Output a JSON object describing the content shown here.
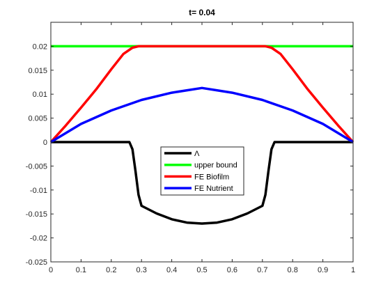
{
  "chart_data": {
    "type": "line",
    "title": "t=  0.04",
    "xlabel": "",
    "ylabel": "",
    "xlim": [
      0,
      1
    ],
    "ylim": [
      -0.025,
      0.025
    ],
    "xticks": [
      0,
      0.1,
      0.2,
      0.3,
      0.4,
      0.5,
      0.6,
      0.7,
      0.8,
      0.9,
      1
    ],
    "xtick_labels": [
      "0",
      "0.1",
      "0.2",
      "0.3",
      "0.4",
      "0.5",
      "0.6",
      "0.7",
      "0.8",
      "0.9",
      "1"
    ],
    "yticks": [
      -0.025,
      -0.02,
      -0.015,
      -0.01,
      -0.005,
      0,
      0.005,
      0.01,
      0.015,
      0.02
    ],
    "ytick_labels": [
      "-0.025",
      "-0.02",
      "-0.015",
      "-0.01",
      "-0.005",
      "0",
      "0.005",
      "0.01",
      "0.015",
      "0.02"
    ],
    "grid": false,
    "legend_position": "center",
    "series": [
      {
        "name": "Λ",
        "color": "#000000",
        "x": [
          0,
          0.1,
          0.2,
          0.26,
          0.27,
          0.28,
          0.29,
          0.3,
          0.35,
          0.4,
          0.45,
          0.5,
          0.55,
          0.6,
          0.65,
          0.7,
          0.71,
          0.72,
          0.73,
          0.74,
          0.8,
          0.9,
          1
        ],
        "y": [
          0,
          0,
          0,
          0,
          -0.0015,
          -0.006,
          -0.011,
          -0.0133,
          -0.0149,
          -0.0161,
          -0.0168,
          -0.017,
          -0.0168,
          -0.0161,
          -0.0149,
          -0.0133,
          -0.011,
          -0.006,
          -0.0015,
          0,
          0,
          0,
          0
        ]
      },
      {
        "name": "upper bound",
        "color": "#00ff00",
        "x": [
          0,
          1
        ],
        "y": [
          0.02,
          0.02
        ]
      },
      {
        "name": "FE Biofilm",
        "color": "#ff0000",
        "x": [
          0,
          0.05,
          0.1,
          0.15,
          0.2,
          0.24,
          0.27,
          0.29,
          0.3,
          0.4,
          0.5,
          0.6,
          0.7,
          0.71,
          0.73,
          0.76,
          0.8,
          0.85,
          0.9,
          0.95,
          1
        ],
        "y": [
          0,
          0.0035,
          0.0072,
          0.011,
          0.0152,
          0.0184,
          0.0197,
          0.02,
          0.02,
          0.02,
          0.02,
          0.02,
          0.02,
          0.02,
          0.0197,
          0.0184,
          0.0152,
          0.011,
          0.0072,
          0.0035,
          0
        ]
      },
      {
        "name": "FE Nutrient",
        "color": "#0000ff",
        "x": [
          0,
          0.1,
          0.2,
          0.3,
          0.4,
          0.5,
          0.6,
          0.7,
          0.8,
          0.9,
          1
        ],
        "y": [
          0,
          0.0038,
          0.0066,
          0.0088,
          0.0103,
          0.0113,
          0.0103,
          0.0088,
          0.0066,
          0.0038,
          0
        ]
      }
    ]
  }
}
